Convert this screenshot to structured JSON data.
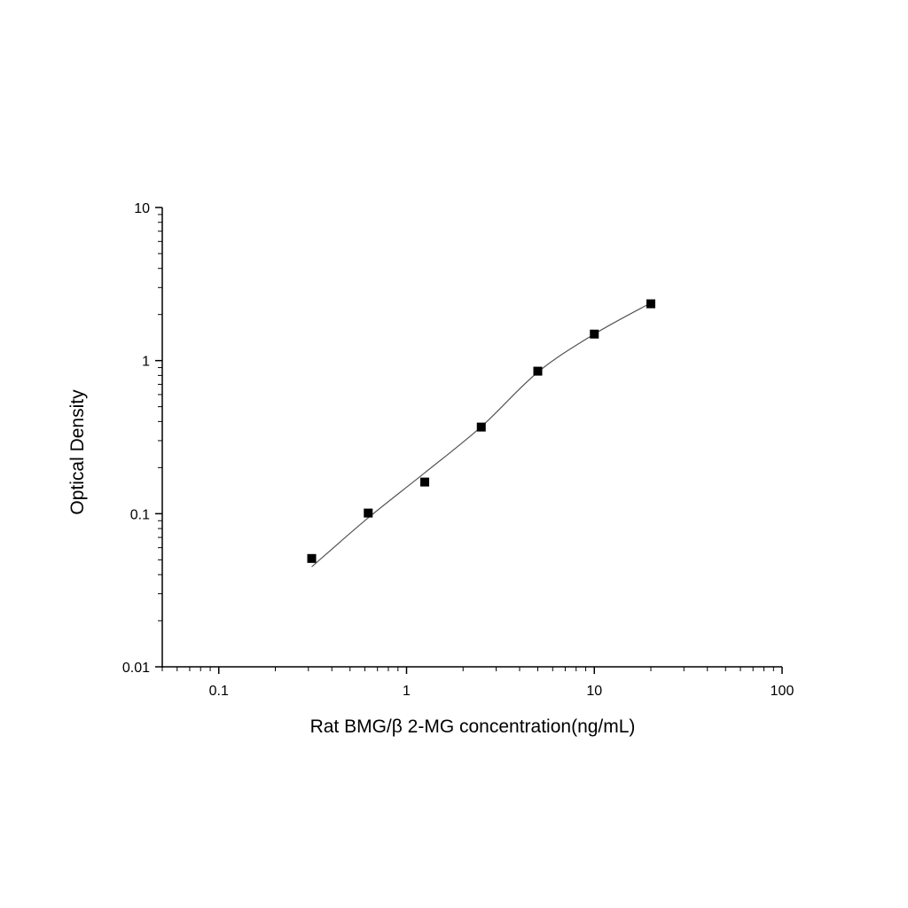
{
  "chart_data": {
    "type": "scatter",
    "title": "",
    "xlabel": "Rat BMG/β 2-MG concentration(ng/mL)",
    "ylabel": "Optical Density",
    "x_scale": "log",
    "y_scale": "log",
    "xlim": [
      0.05,
      100
    ],
    "ylim": [
      0.01,
      10
    ],
    "x_ticks": [
      "0.1",
      "1",
      "10",
      "100"
    ],
    "x_tick_values": [
      0.1,
      1,
      10,
      100
    ],
    "y_ticks": [
      "0.01",
      "0.1",
      "1",
      "10"
    ],
    "y_tick_values": [
      0.01,
      0.1,
      1,
      10
    ],
    "grid": false,
    "legend": "none",
    "series": [
      {
        "kind": "points",
        "marker": "square",
        "color": "#000000",
        "x": [
          0.3125,
          0.625,
          1.25,
          2.5,
          5,
          10,
          20
        ],
        "y": [
          0.051,
          0.101,
          0.161,
          0.368,
          0.853,
          1.49,
          2.35
        ]
      },
      {
        "kind": "fit-curve",
        "color": "#555555",
        "x": [
          0.3125,
          0.625,
          1.25,
          2.5,
          5,
          10,
          20
        ],
        "y": [
          0.045,
          0.094,
          0.185,
          0.37,
          0.84,
          1.49,
          2.38
        ]
      }
    ]
  }
}
